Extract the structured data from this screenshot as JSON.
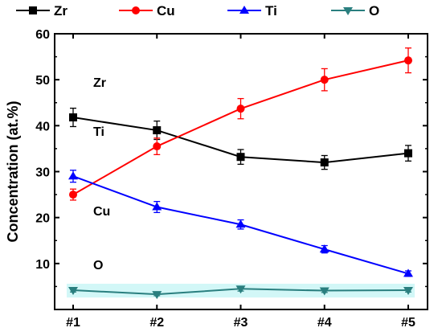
{
  "chart_data": {
    "type": "line",
    "title": "",
    "xlabel": "",
    "ylabel": "Concentration (at.%)",
    "categories": [
      "#1",
      "#2",
      "#3",
      "#4",
      "#5"
    ],
    "ylim": [
      0,
      60
    ],
    "yticks": [
      10,
      20,
      30,
      40,
      50,
      60
    ],
    "grid": false,
    "legend_position": "top",
    "series": [
      {
        "name": "Zr",
        "color": "#000000",
        "marker": "square",
        "values": [
          41.8,
          39.0,
          33.2,
          32.0,
          34.0
        ],
        "errors": [
          2.0,
          2.0,
          1.6,
          1.5,
          1.7
        ]
      },
      {
        "name": "Cu",
        "color": "#ff0000",
        "marker": "circle",
        "values": [
          25.0,
          35.5,
          43.7,
          50.0,
          54.2
        ],
        "errors": [
          1.2,
          1.8,
          2.2,
          2.4,
          2.7
        ]
      },
      {
        "name": "Ti",
        "color": "#0000ff",
        "marker": "triangle-up",
        "values": [
          29.0,
          22.3,
          18.5,
          13.1,
          7.8
        ],
        "errors": [
          1.3,
          1.2,
          1.0,
          0.8,
          0.6
        ]
      },
      {
        "name": "O",
        "color": "#2a7f7f",
        "marker": "triangle-down",
        "values": [
          4.2,
          3.3,
          4.5,
          4.1,
          4.2
        ],
        "errors": [
          0.4,
          0.3,
          0.5,
          0.4,
          0.4
        ]
      }
    ],
    "annotations": [
      {
        "text": "Zr",
        "x": "#1",
        "y": 49.5
      },
      {
        "text": "Ti",
        "x": "#1",
        "y": 38.8
      },
      {
        "text": "Cu",
        "x": "#1",
        "y": 21.5
      },
      {
        "text": "O",
        "x": "#1",
        "y": 9.8
      }
    ]
  }
}
